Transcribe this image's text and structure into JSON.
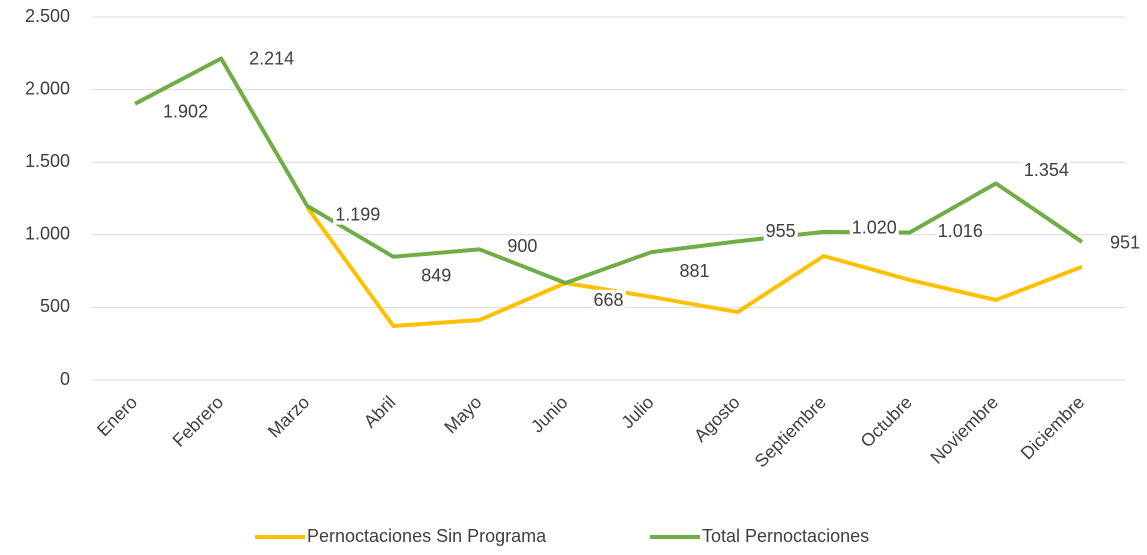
{
  "chart_data": {
    "type": "line",
    "categories": [
      "Enero",
      "Febrero",
      "Marzo",
      "Abril",
      "Mayo",
      "Junio",
      "Julio",
      "Agosto",
      "Septiembre",
      "Octubre",
      "Noviembre",
      "Diciembre"
    ],
    "series": [
      {
        "name": "Pernoctaciones Sin Programa",
        "color": "#ffc000",
        "values": [
          null,
          null,
          1190,
          372,
          413,
          668,
          572,
          468,
          854,
          689,
          551,
          780
        ]
      },
      {
        "name": "Total Pernoctaciones",
        "color": "#70ad47",
        "values": [
          1902,
          2214,
          1199,
          849,
          900,
          668,
          881,
          955,
          1020,
          1016,
          1354,
          951
        ],
        "value_labels": [
          "1.902",
          "2.214",
          "1.199",
          "849",
          "900",
          "668",
          "881",
          "955",
          "1.020",
          "1.016",
          "1.354",
          "951"
        ]
      }
    ],
    "ylim": [
      0,
      2500
    ],
    "yticks": [
      0,
      500,
      {
        "value": 1000,
        "label": "1.000"
      },
      {
        "value": 1500,
        "label": "1.500"
      },
      {
        "value": 2000,
        "label": "2.000"
      },
      {
        "value": 2500,
        "label": "2.500"
      }
    ],
    "grid": true,
    "legend": "bottom"
  }
}
